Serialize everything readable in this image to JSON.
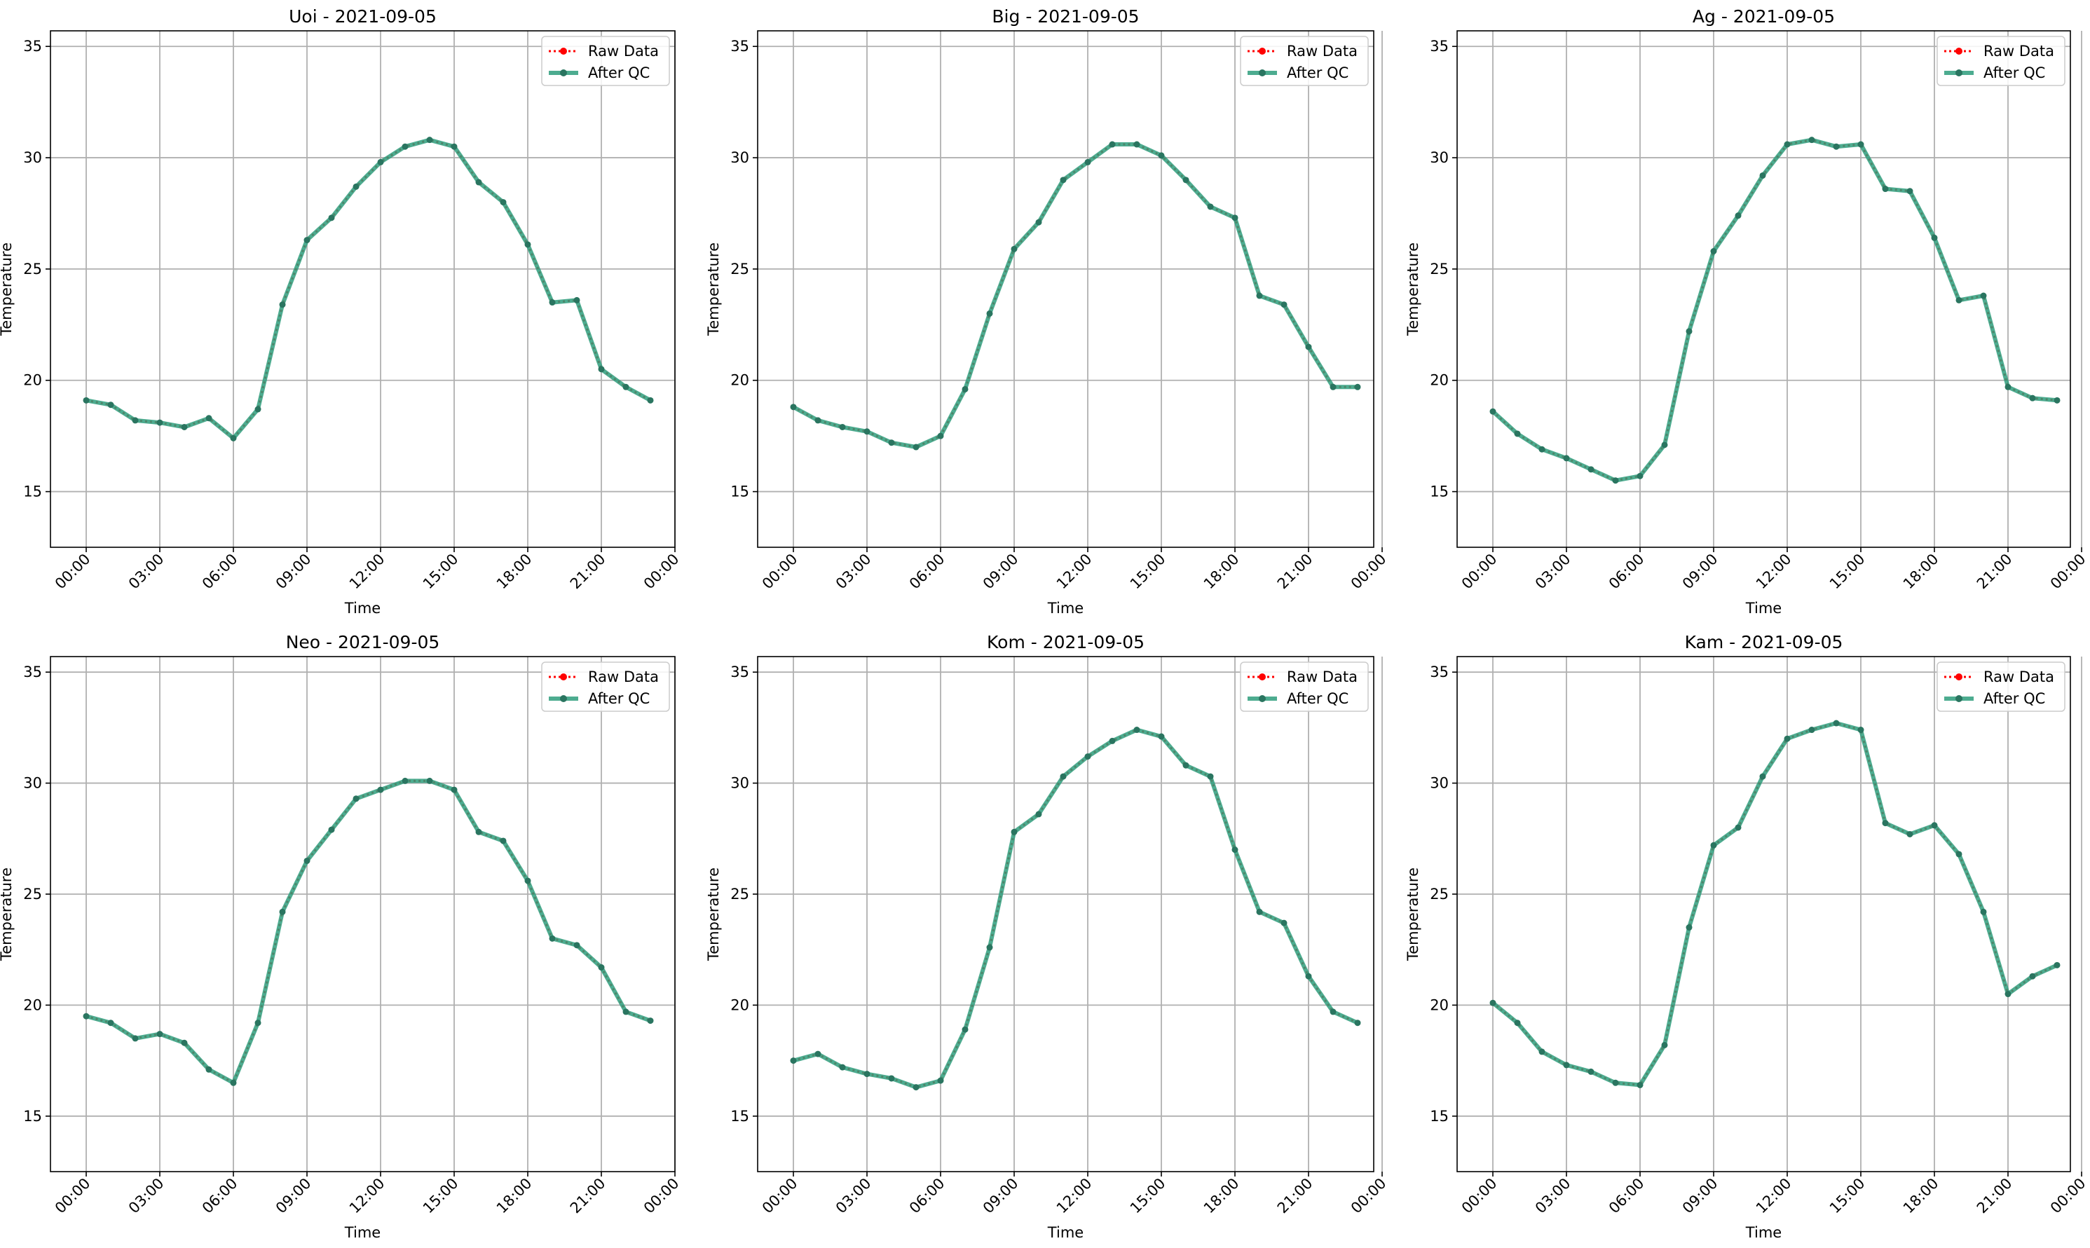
{
  "figure": {
    "legend_raw": "Raw Data",
    "legend_qc": "After QC",
    "colors": {
      "raw": "#ff0000",
      "qc": "#2e9e7c",
      "qc_marker": "#2a7560",
      "grid": "#b0b0b0",
      "axis": "#000000"
    }
  },
  "chart_data": [
    {
      "type": "line",
      "title": "Uoi - 2021-09-05",
      "xlabel": "Time",
      "ylabel": "Temperature",
      "xticks": [
        "00:00",
        "03:00",
        "06:00",
        "09:00",
        "12:00",
        "15:00",
        "18:00",
        "21:00",
        "00:00"
      ],
      "yticks": [
        15,
        20,
        25,
        30,
        35
      ],
      "ylim": [
        12.5,
        35.7
      ],
      "grid": true,
      "legend": "top-right",
      "series": [
        {
          "name": "Raw Data",
          "style": "dotted",
          "values": [
            19.1,
            18.9,
            18.2,
            18.1,
            17.9,
            18.3,
            17.4,
            18.7,
            23.4,
            26.3,
            27.3,
            28.7,
            29.8,
            30.5,
            30.8,
            30.5,
            28.9,
            28.0,
            26.1,
            23.5,
            23.6,
            20.5,
            19.7,
            19.1
          ]
        },
        {
          "name": "After QC",
          "style": "solid",
          "values": [
            19.1,
            18.9,
            18.2,
            18.1,
            17.9,
            18.3,
            17.4,
            18.7,
            23.4,
            26.3,
            27.3,
            28.7,
            29.8,
            30.5,
            30.8,
            30.5,
            28.9,
            28.0,
            26.1,
            23.5,
            23.6,
            20.5,
            19.7,
            19.1
          ]
        }
      ]
    },
    {
      "type": "line",
      "title": "Big - 2021-09-05",
      "xlabel": "Time",
      "ylabel": "Temperature",
      "xticks": [
        "00:00",
        "03:00",
        "06:00",
        "09:00",
        "12:00",
        "15:00",
        "18:00",
        "21:00",
        "00:00"
      ],
      "yticks": [
        15,
        20,
        25,
        30,
        35
      ],
      "ylim": [
        12.5,
        35.7
      ],
      "grid": true,
      "legend": "top-right",
      "series": [
        {
          "name": "Raw Data",
          "style": "dotted",
          "values": [
            18.8,
            18.2,
            17.9,
            17.7,
            17.2,
            17.0,
            17.5,
            19.6,
            23.0,
            25.9,
            27.1,
            29.0,
            29.8,
            30.6,
            30.6,
            30.1,
            29.0,
            27.8,
            27.3,
            23.8,
            23.4,
            21.5,
            19.7,
            19.7
          ]
        },
        {
          "name": "After QC",
          "style": "solid",
          "values": [
            18.8,
            18.2,
            17.9,
            17.7,
            17.2,
            17.0,
            17.5,
            19.6,
            23.0,
            25.9,
            27.1,
            29.0,
            29.8,
            30.6,
            30.6,
            30.1,
            29.0,
            27.8,
            27.3,
            23.8,
            23.4,
            21.5,
            19.7,
            19.7
          ]
        }
      ]
    },
    {
      "type": "line",
      "title": "Ag - 2021-09-05",
      "xlabel": "Time",
      "ylabel": "Temperature",
      "xticks": [
        "00:00",
        "03:00",
        "06:00",
        "09:00",
        "12:00",
        "15:00",
        "18:00",
        "21:00",
        "00:00"
      ],
      "yticks": [
        15,
        20,
        25,
        30,
        35
      ],
      "ylim": [
        12.5,
        35.7
      ],
      "grid": true,
      "legend": "top-right",
      "series": [
        {
          "name": "Raw Data",
          "style": "dotted",
          "values": [
            18.6,
            17.6,
            16.9,
            16.5,
            16.0,
            15.5,
            15.7,
            17.1,
            22.2,
            25.8,
            27.4,
            29.2,
            30.6,
            30.8,
            30.5,
            30.6,
            28.6,
            28.5,
            26.4,
            23.6,
            23.8,
            19.7,
            19.2,
            19.1
          ]
        },
        {
          "name": "After QC",
          "style": "solid",
          "values": [
            18.6,
            17.6,
            16.9,
            16.5,
            16.0,
            15.5,
            15.7,
            17.1,
            22.2,
            25.8,
            27.4,
            29.2,
            30.6,
            30.8,
            30.5,
            30.6,
            28.6,
            28.5,
            26.4,
            23.6,
            23.8,
            19.7,
            19.2,
            19.1
          ]
        }
      ]
    },
    {
      "type": "line",
      "title": "Neo - 2021-09-05",
      "xlabel": "Time",
      "ylabel": "Temperature",
      "xticks": [
        "00:00",
        "03:00",
        "06:00",
        "09:00",
        "12:00",
        "15:00",
        "18:00",
        "21:00",
        "00:00"
      ],
      "yticks": [
        15,
        20,
        25,
        30,
        35
      ],
      "ylim": [
        12.5,
        35.7
      ],
      "grid": true,
      "legend": "top-right",
      "series": [
        {
          "name": "Raw Data",
          "style": "dotted",
          "values": [
            19.5,
            19.2,
            18.5,
            18.7,
            18.3,
            17.1,
            16.5,
            19.2,
            24.2,
            26.5,
            27.9,
            29.3,
            29.7,
            30.1,
            30.1,
            29.7,
            27.8,
            27.4,
            25.6,
            23.0,
            22.7,
            21.7,
            19.7,
            19.3
          ]
        },
        {
          "name": "After QC",
          "style": "solid",
          "values": [
            19.5,
            19.2,
            18.5,
            18.7,
            18.3,
            17.1,
            16.5,
            19.2,
            24.2,
            26.5,
            27.9,
            29.3,
            29.7,
            30.1,
            30.1,
            29.7,
            27.8,
            27.4,
            25.6,
            23.0,
            22.7,
            21.7,
            19.7,
            19.3
          ]
        }
      ]
    },
    {
      "type": "line",
      "title": "Kom - 2021-09-05",
      "xlabel": "Time",
      "ylabel": "Temperature",
      "xticks": [
        "00:00",
        "03:00",
        "06:00",
        "09:00",
        "12:00",
        "15:00",
        "18:00",
        "21:00",
        "00:00"
      ],
      "yticks": [
        15,
        20,
        25,
        30,
        35
      ],
      "ylim": [
        12.5,
        35.7
      ],
      "grid": true,
      "legend": "top-right",
      "series": [
        {
          "name": "Raw Data",
          "style": "dotted",
          "values": [
            17.5,
            17.8,
            17.2,
            16.9,
            16.7,
            16.3,
            16.6,
            18.9,
            22.6,
            27.8,
            28.6,
            30.3,
            31.2,
            31.9,
            32.4,
            32.1,
            30.8,
            30.3,
            27.0,
            24.2,
            23.7,
            21.3,
            19.7,
            19.2
          ]
        },
        {
          "name": "After QC",
          "style": "solid",
          "values": [
            17.5,
            17.8,
            17.2,
            16.9,
            16.7,
            16.3,
            16.6,
            18.9,
            22.6,
            27.8,
            28.6,
            30.3,
            31.2,
            31.9,
            32.4,
            32.1,
            30.8,
            30.3,
            27.0,
            24.2,
            23.7,
            21.3,
            19.7,
            19.2
          ]
        }
      ]
    },
    {
      "type": "line",
      "title": "Kam - 2021-09-05",
      "xlabel": "Time",
      "ylabel": "Temperature",
      "xticks": [
        "00:00",
        "03:00",
        "06:00",
        "09:00",
        "12:00",
        "15:00",
        "18:00",
        "21:00",
        "00:00"
      ],
      "yticks": [
        15,
        20,
        25,
        30,
        35
      ],
      "ylim": [
        12.5,
        35.7
      ],
      "grid": true,
      "legend": "top-right",
      "series": [
        {
          "name": "Raw Data",
          "style": "dotted",
          "values": [
            20.1,
            19.2,
            17.9,
            17.3,
            17.0,
            16.5,
            16.4,
            18.2,
            23.5,
            27.2,
            28.0,
            30.3,
            32.0,
            32.4,
            32.7,
            32.4,
            28.2,
            27.7,
            28.1,
            26.8,
            24.2,
            20.5,
            21.3,
            21.8
          ]
        },
        {
          "name": "After QC",
          "style": "solid",
          "values": [
            20.1,
            19.2,
            17.9,
            17.3,
            17.0,
            16.5,
            16.4,
            18.2,
            23.5,
            27.2,
            28.0,
            30.3,
            32.0,
            32.4,
            32.7,
            32.4,
            28.2,
            27.7,
            28.1,
            26.8,
            24.2,
            20.5,
            21.3,
            21.8
          ]
        }
      ]
    }
  ]
}
